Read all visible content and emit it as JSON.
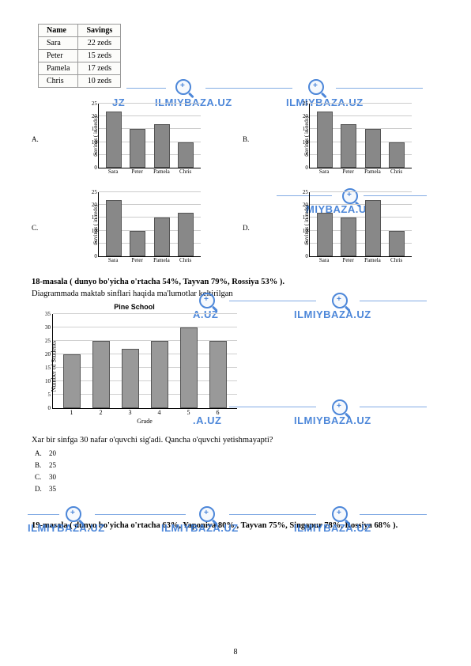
{
  "watermark_text": "ILMIYBAZA.UZ",
  "watermark_partial1": "JZ",
  "watermark_partial2": "MIYBAZA.UZ",
  "watermark_partial3": "A.UZ",
  "watermark_partial4": ".A.UZ",
  "watermark_color": "#3a7bd5",
  "savings_table": {
    "headers": [
      "Name",
      "Savings"
    ],
    "rows": [
      [
        "Sara",
        "22 zeds"
      ],
      [
        "Peter",
        "15 zeds"
      ],
      [
        "Pamela",
        "17 zeds"
      ],
      [
        "Chris",
        "10 zeds"
      ]
    ]
  },
  "mini_charts": {
    "ylabel": "Savings ( in zeds)",
    "ymax": 25,
    "ytick_step": 5,
    "categories": [
      "Sara",
      "Peter",
      "Pamela",
      "Chris"
    ],
    "bar_color": "#888888",
    "options": {
      "A": [
        22,
        15,
        17,
        10
      ],
      "B": [
        22,
        17,
        15,
        10
      ],
      "C": [
        22,
        10,
        15,
        17
      ],
      "D": [
        17,
        15,
        22,
        10
      ]
    }
  },
  "q18_title": "18-masala ( dunyo bo'yicha o'rtacha 54%, Tayvan 79%, Rossiya 53% ).",
  "q18_sub": "Diagrammada maktab sinflari haqida ma'lumotlar keltirilgan",
  "pine_chart": {
    "title": "Pine School",
    "ylabel": "Number of Students",
    "xlabel": "Grade",
    "ymax": 35,
    "ytick_step": 5,
    "categories": [
      "1",
      "2",
      "3",
      "4",
      "5",
      "6"
    ],
    "values": [
      20,
      25,
      22,
      25,
      30,
      25
    ],
    "bar_color": "#999999"
  },
  "q18_question": "Xar bir sinfga 30 nafar o'quvchi sig'adi. Qancha o'quvchi yetishmayapti?",
  "q18_options": {
    "A": "20",
    "B": "25",
    "C": "30",
    "D": "35"
  },
  "q19_title": "19-masala ( dunyo bo'yicha o'rtacha 63%, Yaponiya 80% , Tayvan 75%, Singapur 78%, Rossiya 68% ).",
  "page_number": "8"
}
